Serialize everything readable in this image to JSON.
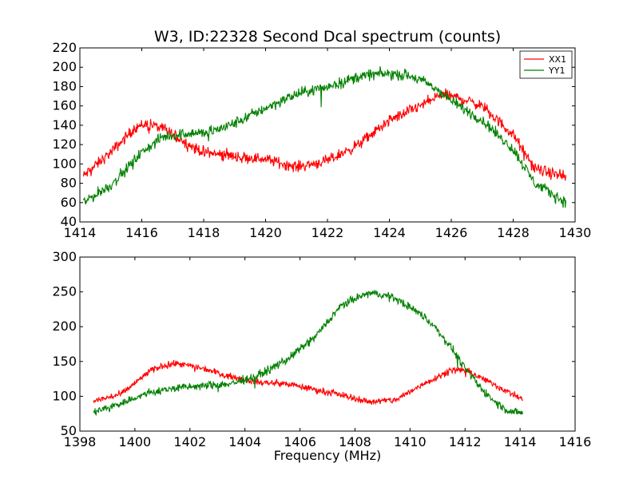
{
  "figure": {
    "title": "W3, ID:22328 Second Dcal spectrum (counts)",
    "xlabel": "Frequency (MHz)"
  },
  "chart_data": [
    {
      "type": "line",
      "title": "W3, ID:22328 Second Dcal spectrum (counts)",
      "xlabel": "",
      "ylabel": "",
      "xlim": [
        1414,
        1430
      ],
      "ylim": [
        40,
        220
      ],
      "xticks": [
        1414,
        1416,
        1418,
        1420,
        1422,
        1424,
        1426,
        1428,
        1430
      ],
      "yticks": [
        40,
        60,
        80,
        100,
        120,
        140,
        160,
        180,
        200,
        220
      ],
      "legend": {
        "position": "top-right",
        "entries": [
          "XX1",
          "YY1"
        ]
      },
      "grid": false,
      "series": [
        {
          "name": "XX1",
          "color": "#ff0000",
          "noise": 5,
          "x": [
            1414.1,
            1415.0,
            1415.8,
            1416.2,
            1416.8,
            1417.5,
            1418.0,
            1419.0,
            1420.0,
            1420.6,
            1421.0,
            1422.0,
            1423.0,
            1424.0,
            1425.0,
            1425.7,
            1426.3,
            1427.0,
            1428.0,
            1428.7,
            1429.7
          ],
          "y": [
            87,
            112,
            138,
            142,
            135,
            120,
            112,
            108,
            105,
            100,
            97,
            103,
            120,
            145,
            160,
            172,
            168,
            160,
            130,
            95,
            86
          ]
        },
        {
          "name": "YY1",
          "color": "#008000",
          "noise": 5,
          "x": [
            1414.1,
            1415.0,
            1416.0,
            1416.7,
            1417.5,
            1418.0,
            1418.5,
            1419.0,
            1420.0,
            1421.0,
            1422.0,
            1423.0,
            1423.5,
            1424.0,
            1424.5,
            1425.0,
            1425.5,
            1426.0,
            1427.0,
            1428.0,
            1428.7,
            1429.7
          ],
          "y": [
            60,
            78,
            112,
            128,
            132,
            132,
            136,
            142,
            158,
            172,
            180,
            190,
            193,
            193,
            192,
            187,
            178,
            165,
            145,
            115,
            80,
            60
          ]
        }
      ]
    },
    {
      "type": "line",
      "title": "",
      "xlabel": "Frequency (MHz)",
      "ylabel": "",
      "xlim": [
        1398,
        1416
      ],
      "ylim": [
        50,
        300
      ],
      "xticks": [
        1398,
        1400,
        1402,
        1404,
        1406,
        1408,
        1410,
        1412,
        1414,
        1416
      ],
      "yticks": [
        50,
        100,
        150,
        200,
        250,
        300
      ],
      "grid": false,
      "series": [
        {
          "name": "XX1",
          "color": "#ff0000",
          "noise": 4,
          "x": [
            1398.5,
            1399.5,
            1400.5,
            1401.0,
            1401.5,
            1402.5,
            1403.5,
            1404.5,
            1405.5,
            1406.5,
            1407.5,
            1408.5,
            1409.5,
            1410.5,
            1411.5,
            1412.0,
            1413.0,
            1414.1
          ],
          "y": [
            93,
            103,
            135,
            144,
            147,
            140,
            128,
            120,
            118,
            110,
            102,
            92,
            95,
            118,
            138,
            138,
            118,
            95
          ]
        },
        {
          "name": "YY1",
          "color": "#008000",
          "noise": 5,
          "x": [
            1398.5,
            1399.5,
            1400.5,
            1401.5,
            1402.5,
            1403.5,
            1404.5,
            1405.5,
            1406.5,
            1407.5,
            1408.0,
            1408.5,
            1409.0,
            1409.5,
            1410.0,
            1410.5,
            1411.0,
            1411.5,
            1412.0,
            1412.5,
            1413.0,
            1413.5,
            1414.1
          ],
          "y": [
            77,
            90,
            105,
            112,
            115,
            118,
            130,
            152,
            183,
            230,
            240,
            248,
            246,
            240,
            228,
            215,
            195,
            170,
            140,
            115,
            95,
            80,
            75
          ]
        }
      ]
    }
  ]
}
